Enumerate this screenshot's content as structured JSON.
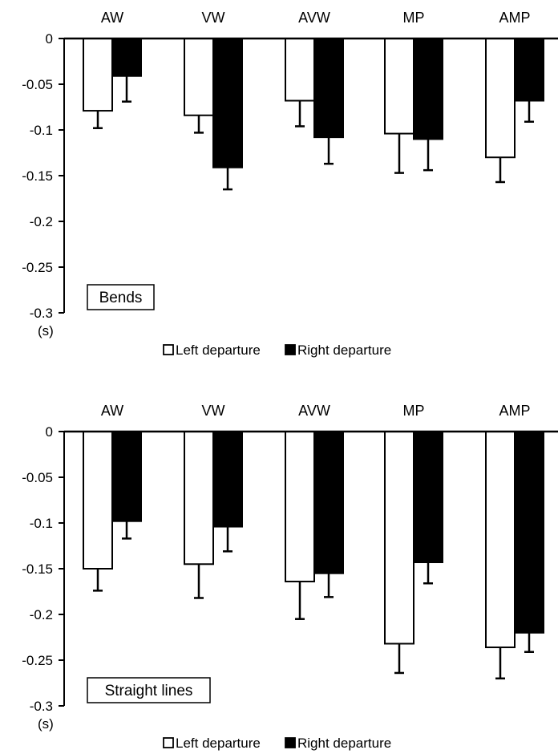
{
  "chart_data": [
    {
      "type": "bar",
      "annotation": "Bends",
      "unit_label": "(s)",
      "categories": [
        "AW",
        "VW",
        "AVW",
        "MP",
        "AMP"
      ],
      "ylim": [
        -0.3,
        0
      ],
      "yticks": [
        "0",
        "-0.05",
        "-0.1",
        "-0.15",
        "-0.2",
        "-0.25",
        "-0.3"
      ],
      "legend_position": "bottom",
      "series": [
        {
          "name": "Left departure",
          "color": "#ffffff",
          "values": [
            -0.079,
            -0.084,
            -0.068,
            -0.104,
            -0.13
          ],
          "errors": [
            0.019,
            0.019,
            0.028,
            0.043,
            0.027
          ]
        },
        {
          "name": "Right departure",
          "color": "#000000",
          "values": [
            -0.041,
            -0.141,
            -0.108,
            -0.11,
            -0.068
          ],
          "errors": [
            0.028,
            0.024,
            0.029,
            0.034,
            0.023
          ]
        }
      ]
    },
    {
      "type": "bar",
      "annotation": "Straight lines",
      "unit_label": "(s)",
      "categories": [
        "AW",
        "VW",
        "AVW",
        "MP",
        "AMP"
      ],
      "ylim": [
        -0.3,
        0
      ],
      "yticks": [
        "0",
        "-0.05",
        "-0.1",
        "-0.15",
        "-0.2",
        "-0.25",
        "-0.3"
      ],
      "legend_position": "bottom",
      "series": [
        {
          "name": "Left departure",
          "color": "#ffffff",
          "values": [
            -0.15,
            -0.145,
            -0.164,
            -0.232,
            -0.236
          ],
          "errors": [
            0.024,
            0.037,
            0.041,
            0.032,
            0.034
          ]
        },
        {
          "name": "Right departure",
          "color": "#000000",
          "values": [
            -0.098,
            -0.104,
            -0.155,
            -0.143,
            -0.22
          ],
          "errors": [
            0.019,
            0.027,
            0.026,
            0.023,
            0.021
          ]
        }
      ]
    }
  ]
}
